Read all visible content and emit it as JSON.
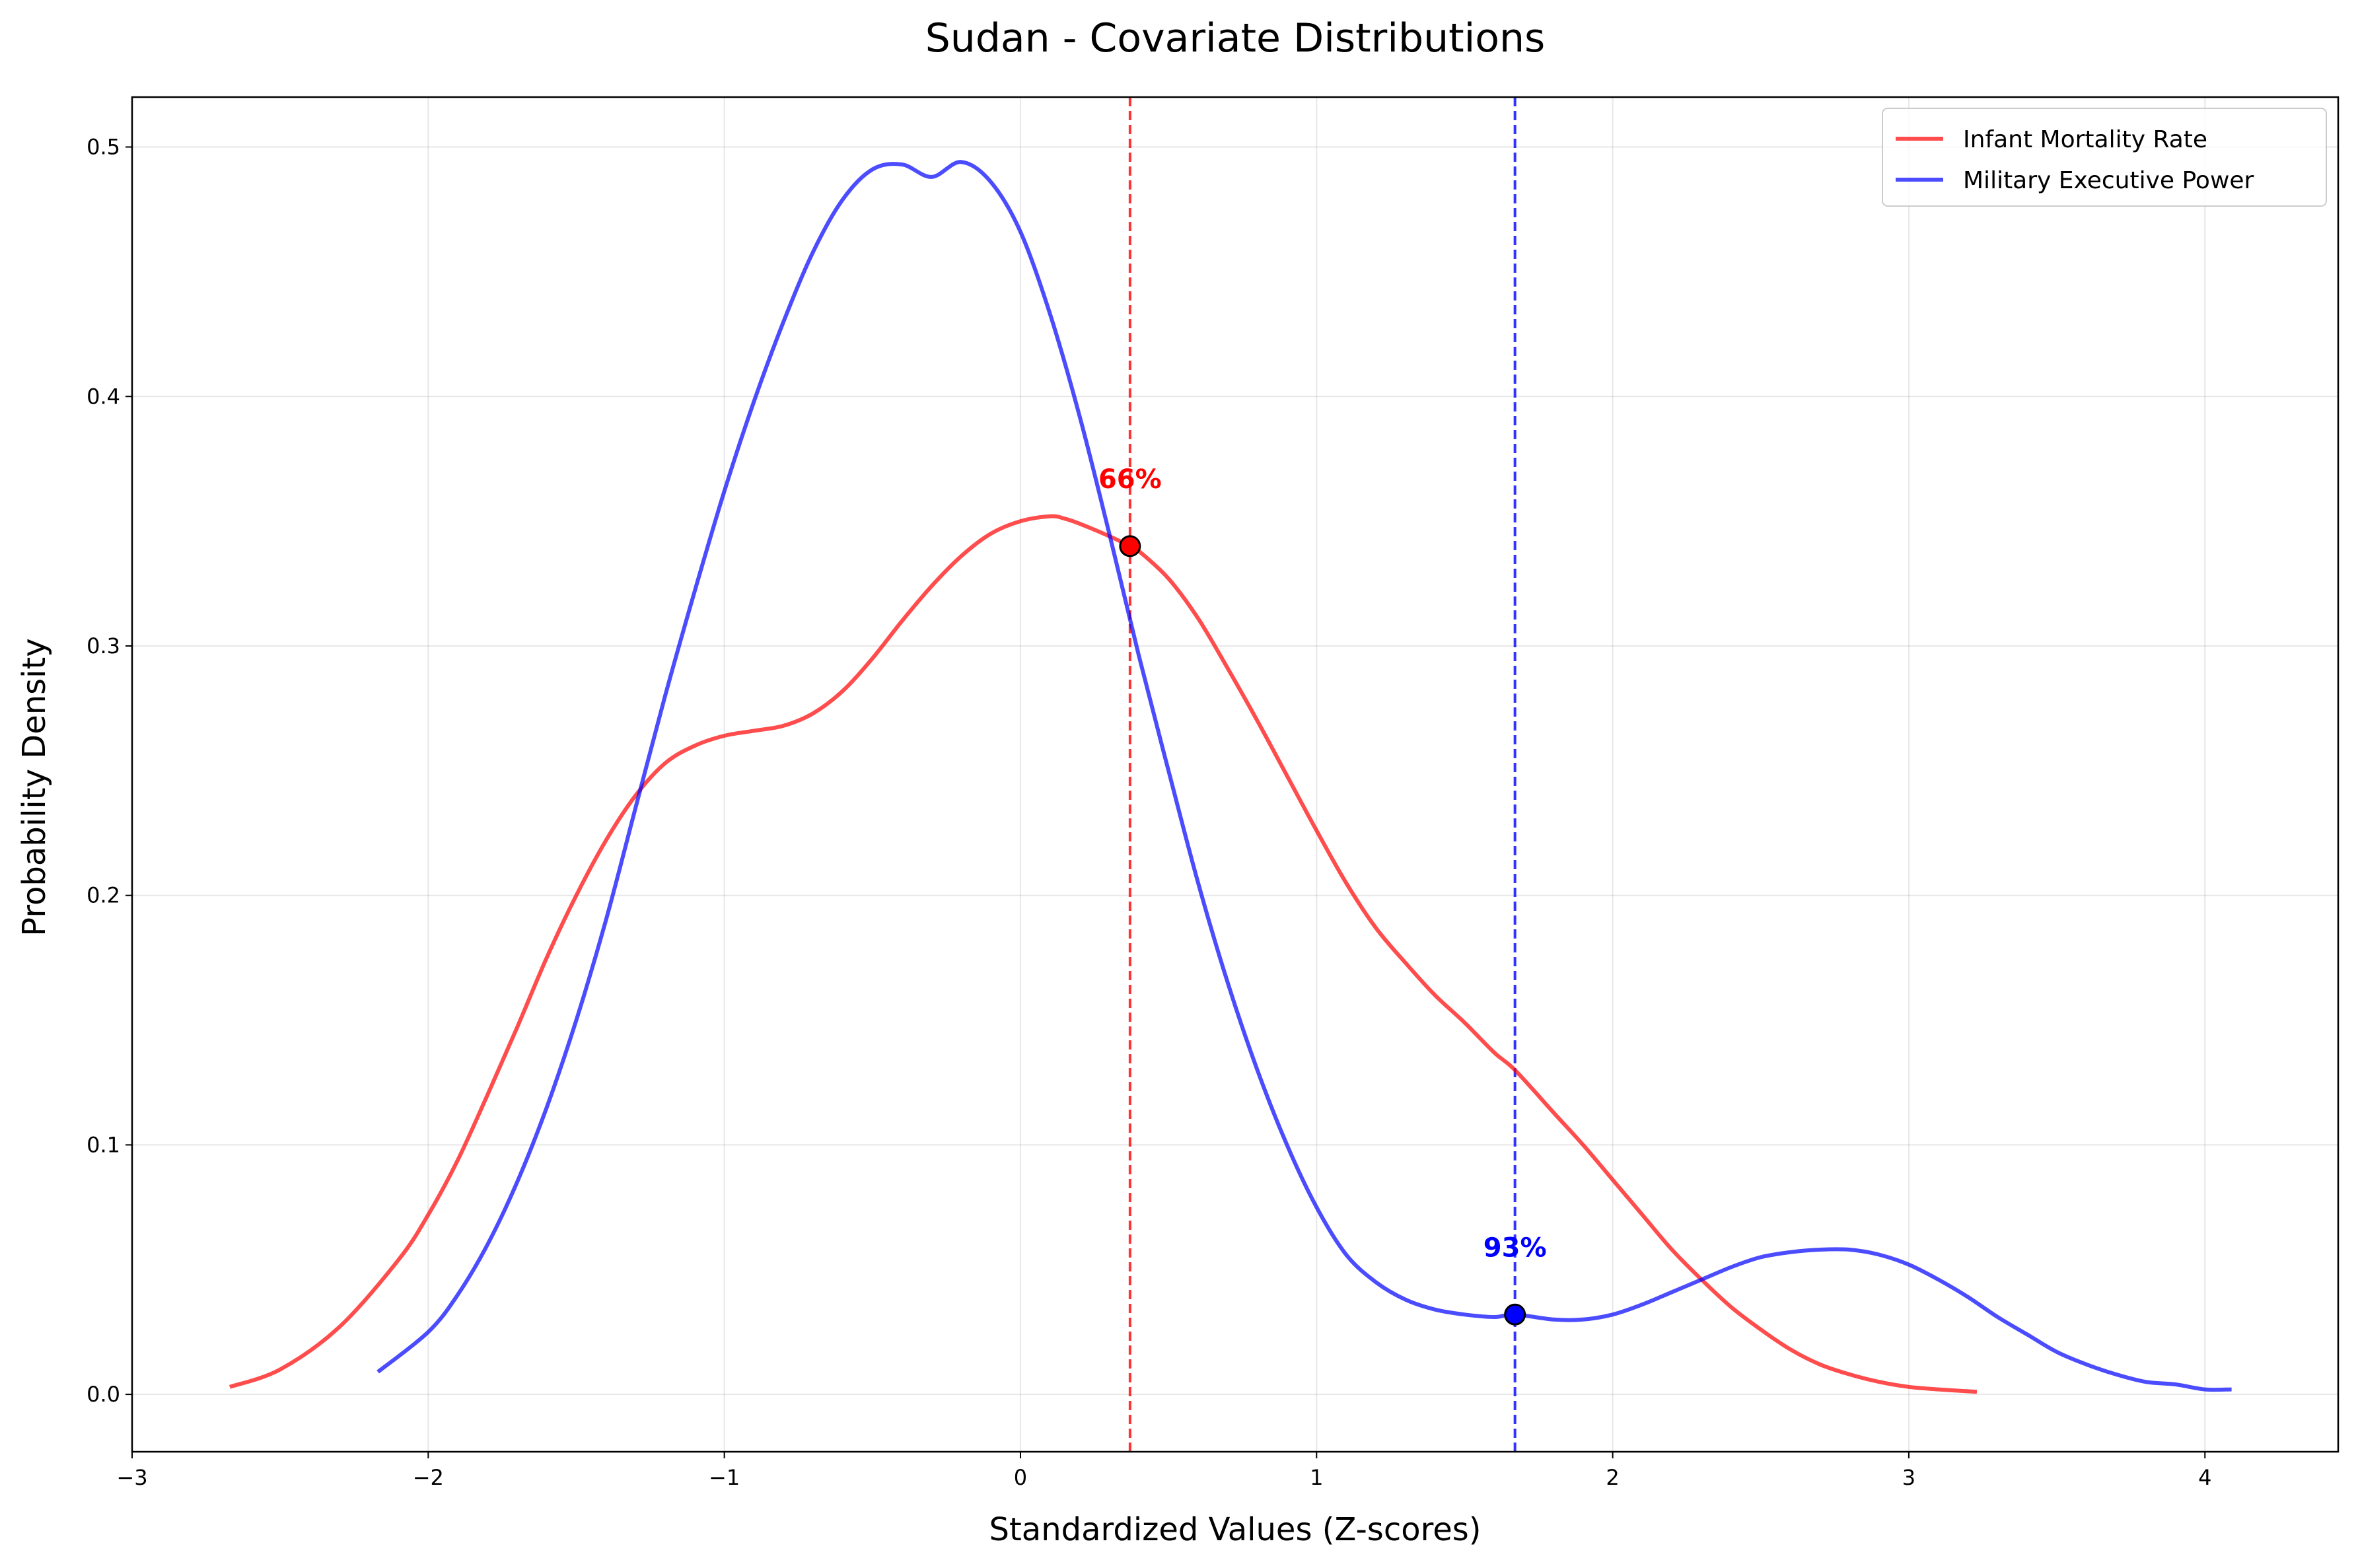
{
  "chart_data": {
    "type": "line",
    "title": "Sudan - Covariate Distributions",
    "xlabel": "Standardized Values (Z-scores)",
    "ylabel": "Probability Density",
    "xlim": [
      -3,
      4.45
    ],
    "ylim": [
      -0.023,
      0.52
    ],
    "xticks": [
      -3,
      -2,
      -1,
      0,
      1,
      2,
      3,
      4
    ],
    "xtick_labels": [
      "−3",
      "−2",
      "−1",
      "0",
      "1",
      "2",
      "3",
      "4"
    ],
    "yticks": [
      0.0,
      0.1,
      0.2,
      0.3,
      0.4,
      0.5
    ],
    "ytick_labels": [
      "0.0",
      "0.1",
      "0.2",
      "0.3",
      "0.4",
      "0.5"
    ],
    "grid": true,
    "legend_position": "top-right",
    "series": [
      {
        "name": "Infant Mortality Rate",
        "color": "#ff0000",
        "x": [
          -2.67,
          -2.5,
          -2.3,
          -2.1,
          -2.0,
          -1.9,
          -1.8,
          -1.7,
          -1.6,
          -1.5,
          -1.4,
          -1.3,
          -1.2,
          -1.1,
          -1.0,
          -0.9,
          -0.8,
          -0.7,
          -0.6,
          -0.5,
          -0.4,
          -0.3,
          -0.2,
          -0.1,
          0.0,
          0.1,
          0.15,
          0.2,
          0.3,
          0.37,
          0.4,
          0.5,
          0.6,
          0.7,
          0.8,
          0.9,
          1.0,
          1.1,
          1.2,
          1.3,
          1.4,
          1.5,
          1.6,
          1.67,
          1.8,
          1.9,
          2.0,
          2.1,
          2.2,
          2.3,
          2.4,
          2.5,
          2.6,
          2.7,
          2.8,
          2.9,
          3.0,
          3.1,
          3.23
        ],
        "y": [
          0.003,
          0.01,
          0.027,
          0.054,
          0.072,
          0.094,
          0.12,
          0.147,
          0.175,
          0.2,
          0.222,
          0.24,
          0.253,
          0.26,
          0.264,
          0.266,
          0.268,
          0.273,
          0.282,
          0.295,
          0.31,
          0.324,
          0.336,
          0.345,
          0.35,
          0.352,
          0.351,
          0.349,
          0.344,
          0.34,
          0.338,
          0.327,
          0.311,
          0.291,
          0.27,
          0.248,
          0.226,
          0.205,
          0.187,
          0.173,
          0.16,
          0.149,
          0.137,
          0.13,
          0.113,
          0.1,
          0.086,
          0.072,
          0.058,
          0.046,
          0.035,
          0.026,
          0.018,
          0.012,
          0.008,
          0.005,
          0.003,
          0.002,
          0.001
        ]
      },
      {
        "name": "Military Executive Power",
        "color": "#0000ff",
        "x": [
          -2.17,
          -2.0,
          -1.9,
          -1.8,
          -1.7,
          -1.6,
          -1.5,
          -1.4,
          -1.3,
          -1.2,
          -1.1,
          -1.0,
          -0.9,
          -0.8,
          -0.7,
          -0.6,
          -0.5,
          -0.4,
          -0.3,
          -0.2,
          -0.1,
          0.0,
          0.1,
          0.2,
          0.3,
          0.4,
          0.5,
          0.6,
          0.7,
          0.8,
          0.9,
          1.0,
          1.1,
          1.2,
          1.3,
          1.4,
          1.5,
          1.6,
          1.67,
          1.8,
          1.9,
          2.0,
          2.1,
          2.2,
          2.3,
          2.4,
          2.5,
          2.6,
          2.7,
          2.8,
          2.9,
          3.0,
          3.1,
          3.2,
          3.3,
          3.4,
          3.5,
          3.6,
          3.7,
          3.8,
          3.9,
          4.0,
          4.09
        ],
        "y": [
          0.009,
          0.025,
          0.04,
          0.06,
          0.085,
          0.115,
          0.15,
          0.19,
          0.235,
          0.28,
          0.322,
          0.362,
          0.398,
          0.43,
          0.458,
          0.479,
          0.491,
          0.493,
          0.488,
          0.494,
          0.486,
          0.466,
          0.433,
          0.392,
          0.345,
          0.296,
          0.25,
          0.205,
          0.165,
          0.13,
          0.1,
          0.075,
          0.056,
          0.045,
          0.038,
          0.034,
          0.032,
          0.031,
          0.032,
          0.03,
          0.03,
          0.032,
          0.036,
          0.041,
          0.046,
          0.051,
          0.055,
          0.057,
          0.058,
          0.058,
          0.056,
          0.052,
          0.046,
          0.039,
          0.031,
          0.024,
          0.017,
          0.012,
          0.008,
          0.005,
          0.004,
          0.002,
          0.002
        ]
      }
    ],
    "markers": [
      {
        "series": "Infant Mortality Rate",
        "x": 0.37,
        "y": 0.34,
        "label": "66%",
        "color": "#ff0000"
      },
      {
        "series": "Military Executive Power",
        "x": 1.67,
        "y": 0.032,
        "label": "93%",
        "color": "#0000ff"
      }
    ]
  }
}
